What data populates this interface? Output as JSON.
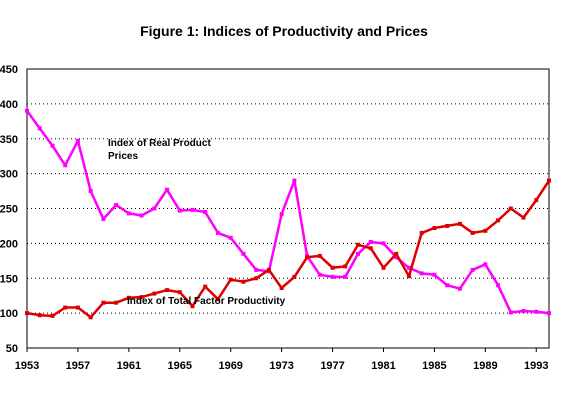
{
  "chart_data": {
    "type": "line",
    "title": "Figure 1: Indices of Productivity and Prices",
    "xlabel": "",
    "ylabel": "",
    "ylim": [
      50,
      450
    ],
    "xlim": [
      1953,
      1994
    ],
    "grid": "horizontal dotted",
    "x": [
      1953,
      1954,
      1955,
      1956,
      1957,
      1958,
      1959,
      1960,
      1961,
      1962,
      1963,
      1964,
      1965,
      1966,
      1967,
      1968,
      1969,
      1970,
      1971,
      1972,
      1973,
      1974,
      1975,
      1976,
      1977,
      1978,
      1979,
      1980,
      1981,
      1982,
      1983,
      1984,
      1985,
      1986,
      1987,
      1988,
      1989,
      1990,
      1991,
      1992,
      1993,
      1994
    ],
    "x_ticks": [
      "1953",
      "1957",
      "1961",
      "1965",
      "1969",
      "1973",
      "1977",
      "1981",
      "1985",
      "1989",
      "1993"
    ],
    "y_ticks": [
      "50",
      "100",
      "150",
      "200",
      "250",
      "300",
      "350",
      "400",
      "450"
    ],
    "series": [
      {
        "color": "#ff00ff",
        "values": [
          390,
          365,
          340,
          312,
          347,
          275,
          235,
          255,
          243,
          240,
          250,
          277,
          247,
          248,
          245,
          215,
          208,
          185,
          162,
          160,
          242,
          290,
          182,
          155,
          152,
          152,
          185,
          202,
          200,
          180,
          165,
          157,
          155,
          140,
          135,
          162,
          170,
          140,
          101,
          103,
          102,
          100
        ]
      },
      {
        "color": "#dd0000",
        "values": [
          100,
          97,
          96,
          108,
          108,
          94,
          115,
          115,
          122,
          123,
          128,
          133,
          130,
          110,
          138,
          120,
          148,
          145,
          150,
          162,
          136,
          152,
          180,
          182,
          165,
          167,
          198,
          193,
          165,
          185,
          153,
          215,
          222,
          225,
          228,
          215,
          218,
          233,
          250,
          237,
          262,
          290
        ]
      }
    ],
    "annotations": [
      {
        "lines": [
          "Index of Real Product",
          "Prices"
        ]
      },
      {
        "lines": [
          "Index of Total Factor Productivity"
        ]
      }
    ]
  }
}
